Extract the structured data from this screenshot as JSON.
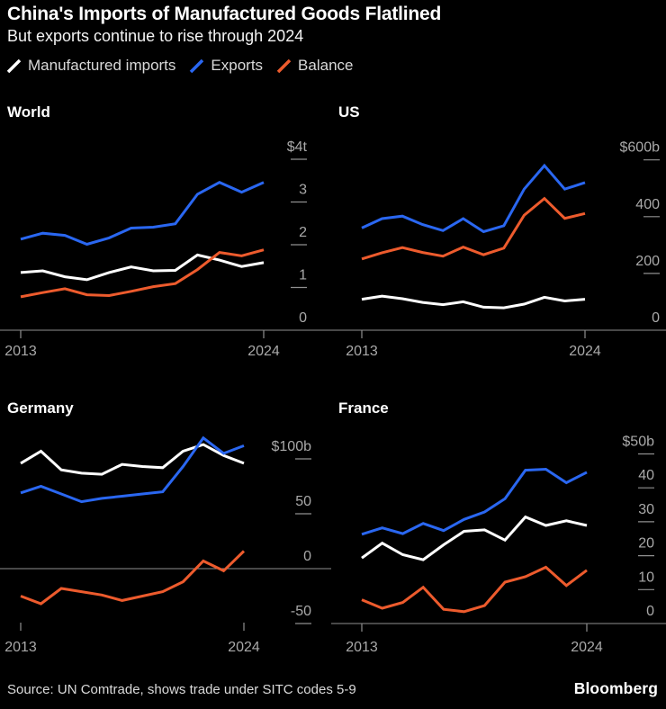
{
  "header": {
    "title": "China's Imports of Manufactured Goods Flatlined",
    "subtitle": "But exports continue to rise through 2024"
  },
  "legend": [
    {
      "label": "Manufactured imports",
      "color": "#ffffff"
    },
    {
      "label": "Exports",
      "color": "#2a67f1"
    },
    {
      "label": "Balance",
      "color": "#ed5b2d"
    }
  ],
  "colors": {
    "background": "#000000",
    "white_line": "#ffffff",
    "blue_line": "#2a67f1",
    "orange_line": "#ed5b2d",
    "axis_text": "#a9a9a9",
    "axis_line": "#8f8f8f"
  },
  "footer": {
    "source": "Source: UN Comtrade, shows trade under SITC codes 5-9",
    "brand": "Bloomberg"
  },
  "chart_data": [
    {
      "type": "line",
      "title": "World",
      "unit": "$ trillions",
      "x": [
        2013,
        2014,
        2015,
        2016,
        2017,
        2018,
        2019,
        2020,
        2021,
        2022,
        2023,
        2024
      ],
      "x_tick_labels": [
        "2013",
        "2024"
      ],
      "ylim": [
        0,
        4
      ],
      "grid": "none",
      "y_ticks": [
        {
          "value": 4,
          "label": "$4t"
        },
        {
          "value": 3,
          "label": "3"
        },
        {
          "value": 2,
          "label": "2"
        },
        {
          "value": 1,
          "label": "1"
        },
        {
          "value": 0,
          "label": "0"
        }
      ],
      "series": [
        {
          "name": "Manufactured imports",
          "color": "#ffffff",
          "values": [
            1.35,
            1.39,
            1.25,
            1.18,
            1.35,
            1.48,
            1.39,
            1.4,
            1.76,
            1.64,
            1.49,
            1.58
          ]
        },
        {
          "name": "Exports",
          "color": "#2a67f1",
          "values": [
            2.13,
            2.27,
            2.22,
            2.01,
            2.16,
            2.39,
            2.41,
            2.49,
            3.18,
            3.46,
            3.23,
            3.46
          ]
        },
        {
          "name": "Balance",
          "color": "#ed5b2d",
          "values": [
            0.78,
            0.88,
            0.97,
            0.83,
            0.81,
            0.91,
            1.02,
            1.09,
            1.42,
            1.82,
            1.74,
            1.88
          ]
        }
      ]
    },
    {
      "type": "line",
      "title": "US",
      "unit": "$ billions",
      "x": [
        2013,
        2014,
        2015,
        2016,
        2017,
        2018,
        2019,
        2020,
        2021,
        2022,
        2023,
        2024
      ],
      "x_tick_labels": [
        "2013",
        "2024"
      ],
      "ylim": [
        0,
        600
      ],
      "grid": "none",
      "y_ticks": [
        {
          "value": 600,
          "label": "$600b"
        },
        {
          "value": 400,
          "label": "400"
        },
        {
          "value": 200,
          "label": "200"
        },
        {
          "value": 0,
          "label": "0"
        }
      ],
      "series": [
        {
          "name": "Manufactured imports",
          "color": "#ffffff",
          "values": [
            109,
            120,
            111,
            98,
            90,
            100,
            81,
            79,
            92,
            116,
            103,
            109
          ]
        },
        {
          "name": "Exports",
          "color": "#2a67f1",
          "values": [
            360,
            393,
            402,
            372,
            351,
            393,
            347,
            368,
            497,
            580,
            497,
            520
          ]
        },
        {
          "name": "Balance",
          "color": "#ed5b2d",
          "values": [
            251,
            273,
            291,
            274,
            261,
            293,
            266,
            289,
            405,
            464,
            394,
            411
          ]
        }
      ]
    },
    {
      "type": "line",
      "title": "Germany",
      "unit": "$ billions",
      "x": [
        2013,
        2014,
        2015,
        2016,
        2017,
        2018,
        2019,
        2020,
        2021,
        2022,
        2023,
        2024
      ],
      "x_tick_labels": [
        "2013",
        "2024"
      ],
      "ylim": [
        -60,
        105
      ],
      "grid": "none",
      "y_ticks": [
        {
          "value": 100,
          "label": "$100b"
        },
        {
          "value": 50,
          "label": "50"
        },
        {
          "value": 0,
          "label": "0"
        },
        {
          "value": -50,
          "label": "-50"
        }
      ],
      "series": [
        {
          "name": "Manufactured imports",
          "color": "#ffffff",
          "values": [
            96,
            107,
            90,
            87,
            86,
            95,
            93,
            92,
            107,
            113,
            103,
            96
          ]
        },
        {
          "name": "Exports",
          "color": "#2a67f1",
          "values": [
            69,
            75,
            68,
            61,
            64,
            66,
            68,
            70,
            93,
            119,
            105,
            112
          ]
        },
        {
          "name": "Balance",
          "color": "#ed5b2d",
          "values": [
            -25,
            -32,
            -18,
            -21,
            -24,
            -29,
            -25,
            -21,
            -12,
            7,
            -2,
            16
          ]
        }
      ]
    },
    {
      "type": "line",
      "title": "France",
      "unit": "$ billions",
      "x": [
        2013,
        2014,
        2015,
        2016,
        2017,
        2018,
        2019,
        2020,
        2021,
        2022,
        2023,
        2024
      ],
      "x_tick_labels": [
        "2013",
        "2024"
      ],
      "ylim": [
        0,
        50
      ],
      "grid": "none",
      "y_ticks": [
        {
          "value": 50,
          "label": "$50b"
        },
        {
          "value": 40,
          "label": "40"
        },
        {
          "value": 30,
          "label": "30"
        },
        {
          "value": 20,
          "label": "20"
        },
        {
          "value": 10,
          "label": "10"
        },
        {
          "value": 0,
          "label": "0"
        }
      ],
      "series": [
        {
          "name": "Manufactured imports",
          "color": "#ffffff",
          "values": [
            19.3,
            23.7,
            20.3,
            18.8,
            23.2,
            27.2,
            27.6,
            24.6,
            31.4,
            28.9,
            30.3,
            28.9
          ]
        },
        {
          "name": "Exports",
          "color": "#2a67f1",
          "values": [
            26.3,
            28.2,
            26.5,
            29.5,
            27.4,
            30.7,
            32.9,
            36.8,
            45.2,
            45.5,
            41.5,
            44.6
          ]
        },
        {
          "name": "Balance",
          "color": "#ed5b2d",
          "values": [
            7.0,
            4.5,
            6.2,
            10.7,
            4.2,
            3.5,
            5.3,
            12.2,
            13.8,
            16.6,
            11.2,
            15.7
          ]
        }
      ]
    }
  ]
}
